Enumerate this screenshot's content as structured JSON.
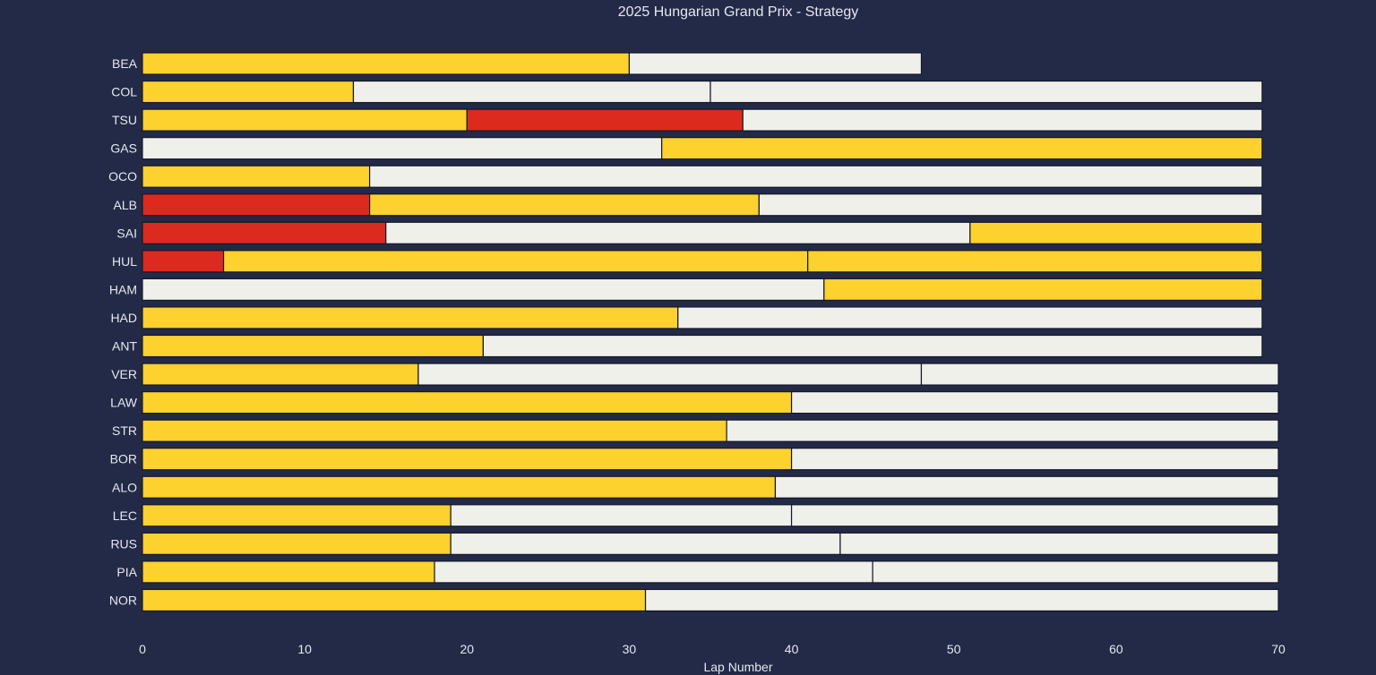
{
  "chart_data": {
    "type": "bar",
    "orientation": "horizontal",
    "stacked": true,
    "title": "2025 Hungarian Grand Prix - Strategy",
    "xlabel": "Lap Number",
    "ylabel": "",
    "xlim": [
      0,
      70
    ],
    "xticks": [
      0,
      10,
      20,
      30,
      40,
      50,
      60,
      70
    ],
    "grid": false,
    "legend": "none",
    "compound_colors": {
      "SOFT": "#dc2a1e",
      "MEDIUM": "#fdd12e",
      "HARD": "#f0f0eb"
    },
    "categories": [
      "BEA",
      "COL",
      "TSU",
      "GAS",
      "OCO",
      "ALB",
      "SAI",
      "HUL",
      "HAM",
      "HAD",
      "ANT",
      "VER",
      "LAW",
      "STR",
      "BOR",
      "ALO",
      "LEC",
      "RUS",
      "PIA",
      "NOR"
    ],
    "drivers": [
      {
        "driver": "BEA",
        "stints": [
          {
            "compound": "MEDIUM",
            "laps": 30
          },
          {
            "compound": "HARD",
            "laps": 18
          }
        ]
      },
      {
        "driver": "COL",
        "stints": [
          {
            "compound": "MEDIUM",
            "laps": 13
          },
          {
            "compound": "HARD",
            "laps": 22
          },
          {
            "compound": "HARD",
            "laps": 34
          }
        ]
      },
      {
        "driver": "TSU",
        "stints": [
          {
            "compound": "MEDIUM",
            "laps": 20
          },
          {
            "compound": "SOFT",
            "laps": 17
          },
          {
            "compound": "HARD",
            "laps": 32
          }
        ]
      },
      {
        "driver": "GAS",
        "stints": [
          {
            "compound": "HARD",
            "laps": 32
          },
          {
            "compound": "MEDIUM",
            "laps": 37
          }
        ]
      },
      {
        "driver": "OCO",
        "stints": [
          {
            "compound": "MEDIUM",
            "laps": 14
          },
          {
            "compound": "HARD",
            "laps": 55
          }
        ]
      },
      {
        "driver": "ALB",
        "stints": [
          {
            "compound": "SOFT",
            "laps": 14
          },
          {
            "compound": "MEDIUM",
            "laps": 24
          },
          {
            "compound": "HARD",
            "laps": 31
          }
        ]
      },
      {
        "driver": "SAI",
        "stints": [
          {
            "compound": "SOFT",
            "laps": 15
          },
          {
            "compound": "HARD",
            "laps": 36
          },
          {
            "compound": "MEDIUM",
            "laps": 18
          }
        ]
      },
      {
        "driver": "HUL",
        "stints": [
          {
            "compound": "SOFT",
            "laps": 5
          },
          {
            "compound": "MEDIUM",
            "laps": 36
          },
          {
            "compound": "MEDIUM",
            "laps": 28
          }
        ]
      },
      {
        "driver": "HAM",
        "stints": [
          {
            "compound": "HARD",
            "laps": 42
          },
          {
            "compound": "MEDIUM",
            "laps": 27
          }
        ]
      },
      {
        "driver": "HAD",
        "stints": [
          {
            "compound": "MEDIUM",
            "laps": 33
          },
          {
            "compound": "HARD",
            "laps": 36
          }
        ]
      },
      {
        "driver": "ANT",
        "stints": [
          {
            "compound": "MEDIUM",
            "laps": 21
          },
          {
            "compound": "HARD",
            "laps": 48
          }
        ]
      },
      {
        "driver": "VER",
        "stints": [
          {
            "compound": "MEDIUM",
            "laps": 17
          },
          {
            "compound": "HARD",
            "laps": 31
          },
          {
            "compound": "HARD",
            "laps": 22
          }
        ]
      },
      {
        "driver": "LAW",
        "stints": [
          {
            "compound": "MEDIUM",
            "laps": 40
          },
          {
            "compound": "HARD",
            "laps": 30
          }
        ]
      },
      {
        "driver": "STR",
        "stints": [
          {
            "compound": "MEDIUM",
            "laps": 36
          },
          {
            "compound": "HARD",
            "laps": 34
          }
        ]
      },
      {
        "driver": "BOR",
        "stints": [
          {
            "compound": "MEDIUM",
            "laps": 40
          },
          {
            "compound": "HARD",
            "laps": 30
          }
        ]
      },
      {
        "driver": "ALO",
        "stints": [
          {
            "compound": "MEDIUM",
            "laps": 39
          },
          {
            "compound": "HARD",
            "laps": 31
          }
        ]
      },
      {
        "driver": "LEC",
        "stints": [
          {
            "compound": "MEDIUM",
            "laps": 19
          },
          {
            "compound": "HARD",
            "laps": 21
          },
          {
            "compound": "HARD",
            "laps": 30
          }
        ]
      },
      {
        "driver": "RUS",
        "stints": [
          {
            "compound": "MEDIUM",
            "laps": 19
          },
          {
            "compound": "HARD",
            "laps": 24
          },
          {
            "compound": "HARD",
            "laps": 27
          }
        ]
      },
      {
        "driver": "PIA",
        "stints": [
          {
            "compound": "MEDIUM",
            "laps": 18
          },
          {
            "compound": "HARD",
            "laps": 27
          },
          {
            "compound": "HARD",
            "laps": 25
          }
        ]
      },
      {
        "driver": "NOR",
        "stints": [
          {
            "compound": "MEDIUM",
            "laps": 31
          },
          {
            "compound": "HARD",
            "laps": 39
          }
        ]
      }
    ]
  }
}
